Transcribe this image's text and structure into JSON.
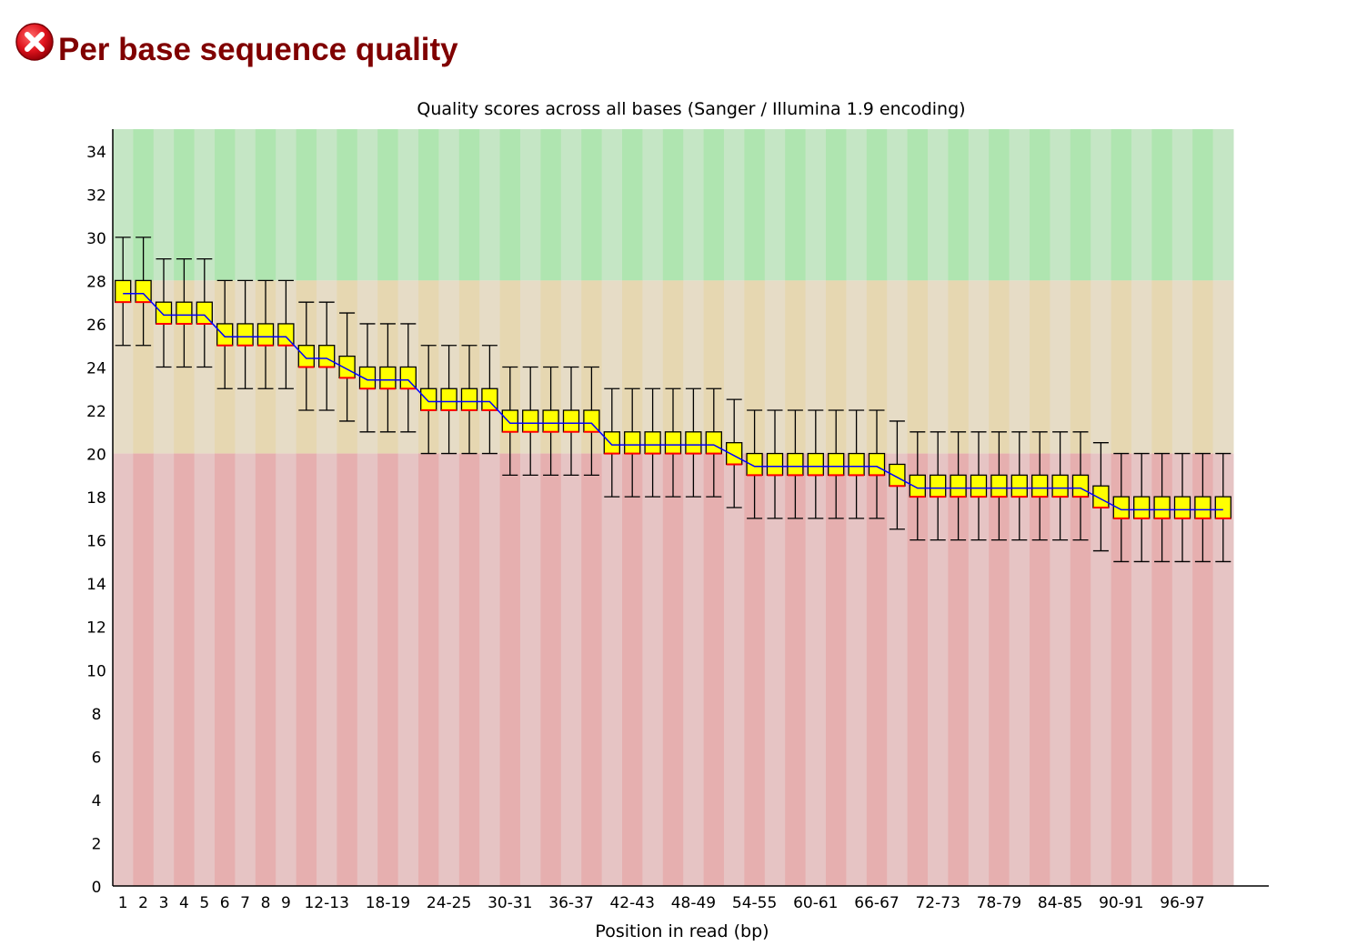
{
  "header": {
    "status": "fail",
    "status_icon": "error-cross-icon",
    "title": "Per base sequence quality"
  },
  "colors": {
    "title": "#800000",
    "good_zone": [
      "#c5e6c5",
      "#afe5b0"
    ],
    "warn_zone": [
      "#e6dcc6",
      "#e6d7b1"
    ],
    "poor_zone": [
      "#e6c4c4",
      "#e6afaf"
    ],
    "box_fill": "#ffff00",
    "box_stroke": "#000000",
    "median_stroke": "#ff0000",
    "mean_line": "#0000ff"
  },
  "chart_data": {
    "type": "boxplot",
    "title": "Quality scores across all bases (Sanger / Illumina 1.9 encoding)",
    "xlabel": "Position in read (bp)",
    "ylabel": "",
    "ylim": [
      0,
      35
    ],
    "yticks": [
      0,
      2,
      4,
      6,
      8,
      10,
      12,
      14,
      16,
      18,
      20,
      22,
      24,
      26,
      28,
      30,
      32,
      34
    ],
    "zones": [
      {
        "name": "good",
        "from": 28,
        "to": 35
      },
      {
        "name": "warning",
        "from": 20,
        "to": 28
      },
      {
        "name": "poor",
        "from": 0,
        "to": 20
      }
    ],
    "categories": [
      "1",
      "2",
      "3",
      "4",
      "5",
      "6",
      "7",
      "8",
      "9",
      "10-11",
      "12-13",
      "14-15",
      "16-17",
      "18-19",
      "20-21",
      "22-23",
      "24-25",
      "26-27",
      "28-29",
      "30-31",
      "32-33",
      "34-35",
      "36-37",
      "38-39",
      "40-41",
      "42-43",
      "44-45",
      "46-47",
      "48-49",
      "50-51",
      "52-53",
      "54-55",
      "56-57",
      "58-59",
      "60-61",
      "62-63",
      "64-65",
      "66-67",
      "68-69",
      "70-71",
      "72-73",
      "74-75",
      "76-77",
      "78-79",
      "80-81",
      "82-83",
      "84-85",
      "86-87",
      "88-89",
      "90-91",
      "92-93",
      "94-95",
      "96-97",
      "98-99",
      "100"
    ],
    "tick_labels": [
      "1",
      "2",
      "3",
      "4",
      "5",
      "6",
      "7",
      "8",
      "9",
      "12-13",
      "18-19",
      "24-25",
      "30-31",
      "36-37",
      "42-43",
      "48-49",
      "54-55",
      "60-61",
      "66-67",
      "72-73",
      "78-79",
      "84-85",
      "90-91",
      "96-97"
    ],
    "tick_label_indices": [
      0,
      1,
      2,
      3,
      4,
      5,
      6,
      7,
      8,
      10,
      13,
      16,
      19,
      22,
      25,
      28,
      31,
      34,
      37,
      40,
      43,
      46,
      49,
      52
    ],
    "series": [
      {
        "name": "lower_whisker",
        "values": [
          25,
          25,
          24,
          24,
          24,
          23,
          23,
          23,
          23,
          22,
          22,
          21.5,
          21,
          21,
          21,
          20,
          20,
          20,
          20,
          19,
          19,
          19,
          19,
          19,
          18,
          18,
          18,
          18,
          18,
          18,
          17.5,
          17,
          17,
          17,
          17,
          17,
          17,
          17,
          16.5,
          16,
          16,
          16,
          16,
          16,
          16,
          16,
          16,
          16,
          15.5,
          15,
          15,
          15,
          15,
          15,
          15
        ]
      },
      {
        "name": "lower_quartile",
        "values": [
          27,
          27,
          26,
          26,
          26,
          25,
          25,
          25,
          25,
          24,
          24,
          23.5,
          23,
          23,
          23,
          22,
          22,
          22,
          22,
          21,
          21,
          21,
          21,
          21,
          20,
          20,
          20,
          20,
          20,
          20,
          19.5,
          19,
          19,
          19,
          19,
          19,
          19,
          19,
          18.5,
          18,
          18,
          18,
          18,
          18,
          18,
          18,
          18,
          18,
          17.5,
          17,
          17,
          17,
          17,
          17,
          17
        ]
      },
      {
        "name": "median",
        "values": [
          27,
          27,
          26,
          26,
          26,
          25,
          25,
          25,
          25,
          24,
          24,
          23.5,
          23,
          23,
          23,
          22,
          22,
          22,
          22,
          21,
          21,
          21,
          21,
          21,
          20,
          20,
          20,
          20,
          20,
          20,
          19.5,
          19,
          19,
          19,
          19,
          19,
          19,
          19,
          18.5,
          18,
          18,
          18,
          18,
          18,
          18,
          18,
          18,
          18,
          17.5,
          17,
          17,
          17,
          17,
          17,
          17
        ]
      },
      {
        "name": "upper_quartile",
        "values": [
          28,
          28,
          27,
          27,
          27,
          26,
          26,
          26,
          26,
          25,
          25,
          24.5,
          24,
          24,
          24,
          23,
          23,
          23,
          23,
          22,
          22,
          22,
          22,
          22,
          21,
          21,
          21,
          21,
          21,
          21,
          20.5,
          20,
          20,
          20,
          20,
          20,
          20,
          20,
          19.5,
          19,
          19,
          19,
          19,
          19,
          19,
          19,
          19,
          19,
          18.5,
          18,
          18,
          18,
          18,
          18,
          18
        ]
      },
      {
        "name": "upper_whisker",
        "values": [
          30,
          30,
          29,
          29,
          29,
          28,
          28,
          28,
          28,
          27,
          27,
          26.5,
          26,
          26,
          26,
          25,
          25,
          25,
          25,
          24,
          24,
          24,
          24,
          24,
          23,
          23,
          23,
          23,
          23,
          23,
          22.5,
          22,
          22,
          22,
          22,
          22,
          22,
          22,
          21.5,
          21,
          21,
          21,
          21,
          21,
          21,
          21,
          21,
          21,
          20.5,
          20,
          20,
          20,
          20,
          20,
          20
        ]
      },
      {
        "name": "mean",
        "values": [
          27.4,
          27.4,
          26.4,
          26.4,
          26.4,
          25.4,
          25.4,
          25.4,
          25.4,
          24.4,
          24.4,
          23.9,
          23.4,
          23.4,
          23.4,
          22.4,
          22.4,
          22.4,
          22.4,
          21.4,
          21.4,
          21.4,
          21.4,
          21.4,
          20.4,
          20.4,
          20.4,
          20.4,
          20.4,
          20.4,
          19.9,
          19.4,
          19.4,
          19.4,
          19.4,
          19.4,
          19.4,
          19.4,
          18.9,
          18.4,
          18.4,
          18.4,
          18.4,
          18.4,
          18.4,
          18.4,
          18.4,
          18.4,
          17.9,
          17.4,
          17.4,
          17.4,
          17.4,
          17.4,
          17.4
        ]
      }
    ]
  }
}
